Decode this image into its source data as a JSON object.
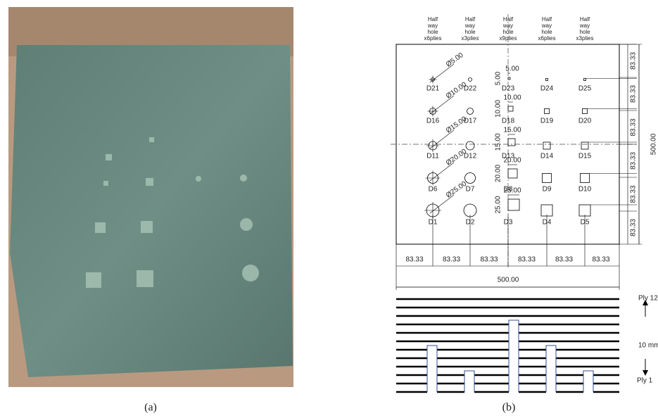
{
  "panels": {
    "a": "(a)",
    "b": "(b)"
  },
  "diagram": {
    "column_headers": [
      [
        "Half",
        "way",
        "hole",
        "x6plies"
      ],
      [
        "Half",
        "way",
        "hole",
        "x3plies"
      ],
      [
        "Half",
        "way",
        "hole",
        "x9plies"
      ],
      [
        "Half",
        "way",
        "hole",
        "x6plies"
      ],
      [
        "Half",
        "way",
        "hole",
        "x3plies"
      ]
    ],
    "rows": [
      {
        "labels": [
          "D21",
          "D22",
          "D23",
          "D24",
          "D25"
        ],
        "diameter": "Ø5.00",
        "square_width": "5.00",
        "square_height": "5.00"
      },
      {
        "labels": [
          "D16",
          "D17",
          "D18",
          "D19",
          "D20"
        ],
        "diameter": "Ø10.00",
        "square_width": "10.00",
        "square_height": "10.00"
      },
      {
        "labels": [
          "D11",
          "D12",
          "D13",
          "D14",
          "D15"
        ],
        "diameter": "Ø15.00",
        "square_width": "15.00",
        "square_height": "15.00"
      },
      {
        "labels": [
          "D6",
          "D7",
          "D8",
          "D9",
          "D10"
        ],
        "diameter": "Ø20.00",
        "square_width": "20.00",
        "square_height": "20.00"
      },
      {
        "labels": [
          "D1",
          "D2",
          "D3",
          "D4",
          "D5"
        ],
        "diameter": "Ø25.00",
        "square_width": "25.00",
        "square_height": "25.00"
      }
    ],
    "right_dims": [
      "83.33",
      "83.33",
      "83.33",
      "83.33",
      "83.33",
      "83.33"
    ],
    "right_total": "500.00",
    "bottom_dims": [
      "83.33",
      "83.33",
      "83.33",
      "83.33",
      "83.33",
      "83.33"
    ],
    "bottom_total": "500.00"
  },
  "ply_section": {
    "top": "Ply 12",
    "thickness": "10 mm",
    "bottom": "Ply 1"
  }
}
